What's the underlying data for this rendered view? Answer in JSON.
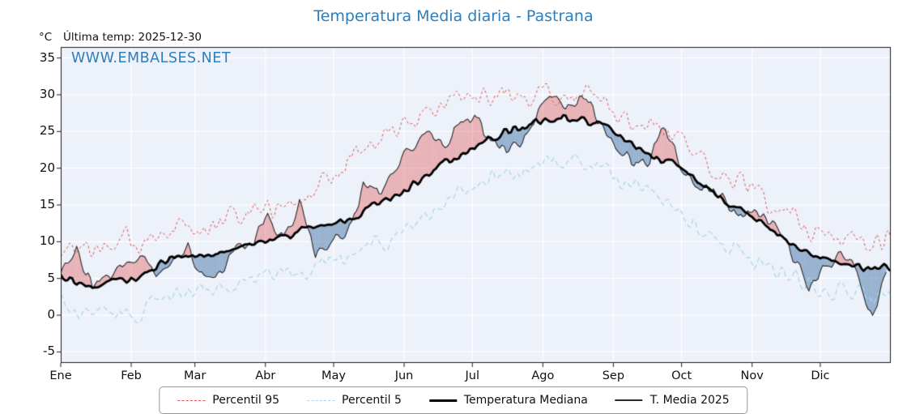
{
  "title": "Temperatura Media diaria - Pastrana",
  "unit_label": "°C",
  "last_temp": "Última temp: 2025-12-30",
  "watermark": "WWW.EMBALSES.NET",
  "colors": {
    "title": "#2e7ebc",
    "watermark": "#2e7ebc",
    "plot_bg": "#edf1f9",
    "grid": "#ffffff",
    "axis": "#1a1a1a",
    "fill_above": "rgba(226,88,88,0.40)",
    "fill_below": "rgba(80,125,175,0.55)"
  },
  "legend": {
    "items": [
      {
        "label": "Percentil 95",
        "color": "#e05252",
        "style": "dashed",
        "weight": 1.5
      },
      {
        "label": "Percentil 5",
        "color": "#a6d8ea",
        "style": "dashed",
        "weight": 1.5
      },
      {
        "label": "Temperatura Mediana",
        "color": "#000000",
        "style": "solid",
        "weight": 3
      },
      {
        "label": "T. Media 2025",
        "color": "#2a2a2a",
        "style": "solid",
        "weight": 1.2
      }
    ]
  },
  "chart_data": {
    "type": "line",
    "title": "Temperatura Media diaria - Pastrana",
    "ylabel": "°C",
    "x_tick_labels": [
      "Ene",
      "Feb",
      "Mar",
      "Abr",
      "May",
      "Jun",
      "Jul",
      "Ago",
      "Sep",
      "Oct",
      "Nov",
      "Dic"
    ],
    "month_start_days": [
      0,
      31,
      59,
      90,
      120,
      151,
      181,
      212,
      243,
      273,
      304,
      334
    ],
    "days_in_year": 365,
    "last_day_2025": 363,
    "y_ticks": [
      35,
      30,
      25,
      20,
      15,
      10,
      5,
      0,
      -5
    ],
    "ylim": [
      -6.5,
      36.5
    ],
    "grid": true,
    "legend_position": "bottom",
    "sample_step_days": 7,
    "series": [
      {
        "name": "Percentil 95",
        "color": "#e05252",
        "line": "dashed",
        "dash": [
          3,
          3
        ],
        "width": 1,
        "jitter": 2.2,
        "values": [
          9.5,
          10.0,
          8.5,
          9.0,
          10.5,
          9.5,
          11.0,
          12.0,
          12.5,
          11.5,
          13.0,
          13.5,
          14.5,
          15.0,
          14.0,
          16.0,
          17.0,
          19.0,
          20.5,
          22.5,
          24.0,
          25.0,
          26.0,
          27.5,
          29.0,
          30.0,
          29.5,
          30.0,
          30.5,
          30.0,
          30.5,
          30.0,
          29.5,
          29.5,
          28.5,
          27.5,
          26.5,
          26.0,
          25.0,
          23.5,
          22.0,
          20.5,
          19.0,
          17.5,
          16.0,
          15.0,
          13.5,
          12.0,
          11.0,
          10.5,
          10.0,
          9.5,
          10.0
        ]
      },
      {
        "name": "Percentil 5",
        "color": "#a6d8ea",
        "line": "dashed",
        "dash": [
          6,
          4
        ],
        "width": 1.2,
        "jitter": 1.8,
        "values": [
          1.5,
          1.0,
          0.5,
          1.5,
          0.5,
          -0.5,
          2.0,
          3.0,
          3.5,
          3.0,
          4.0,
          4.5,
          5.0,
          5.5,
          5.0,
          6.0,
          6.5,
          7.5,
          8.0,
          9.0,
          10.0,
          11.0,
          12.0,
          13.5,
          15.0,
          16.5,
          17.5,
          18.5,
          19.5,
          20.0,
          20.5,
          21.0,
          21.0,
          20.5,
          20.0,
          18.5,
          17.5,
          16.5,
          15.0,
          13.5,
          12.0,
          10.5,
          9.5,
          8.5,
          7.0,
          6.0,
          5.0,
          4.0,
          3.5,
          3.0,
          2.8,
          2.5,
          3.0
        ]
      },
      {
        "name": "Temperatura Mediana",
        "color": "#000000",
        "line": "solid",
        "dash": [],
        "width": 2.8,
        "jitter": 0.8,
        "values": [
          5.5,
          4.2,
          3.8,
          4.6,
          4.5,
          5.5,
          6.5,
          7.8,
          8.2,
          7.6,
          8.4,
          9.0,
          9.5,
          10.2,
          10.8,
          11.5,
          12.0,
          12.4,
          13.2,
          14.0,
          15.2,
          16.0,
          17.5,
          19.0,
          20.5,
          21.8,
          23.0,
          24.2,
          25.0,
          25.8,
          26.3,
          26.6,
          27.0,
          26.5,
          25.8,
          24.5,
          23.2,
          22.0,
          21.0,
          20.0,
          18.5,
          16.5,
          15.0,
          14.0,
          12.5,
          11.0,
          9.5,
          8.5,
          7.5,
          7.0,
          6.8,
          6.5,
          6.8
        ]
      },
      {
        "name": "T. Media 2025",
        "color": "#2a2a2a",
        "line": "solid",
        "dash": [],
        "width": 1.1,
        "jitter": 1.4,
        "values": [
          6.5,
          9.0,
          4.0,
          5.5,
          7.0,
          8.5,
          6.0,
          8.0,
          9.5,
          5.0,
          6.0,
          9.0,
          10.0,
          13.5,
          10.5,
          15.5,
          8.0,
          10.5,
          11.0,
          17.5,
          17.0,
          19.5,
          22.5,
          24.5,
          23.0,
          26.5,
          27.0,
          24.0,
          22.5,
          23.5,
          27.5,
          29.5,
          28.0,
          30.0,
          26.0,
          23.0,
          20.5,
          21.5,
          26.0,
          19.5,
          18.0,
          17.0,
          14.5,
          13.5,
          14.0,
          12.5,
          8.0,
          3.5,
          6.5,
          8.5,
          6.0,
          -1.0,
          7.0
        ]
      }
    ]
  }
}
